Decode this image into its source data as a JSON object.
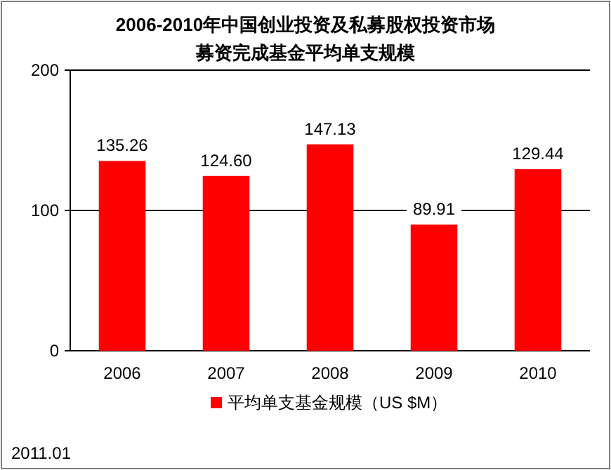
{
  "chart_data": {
    "type": "bar",
    "title": "2006-2010年中国创业投资及私募股权投资市场",
    "subtitle": "募资完成基金平均单支规模",
    "categories": [
      "2006",
      "2007",
      "2008",
      "2009",
      "2010"
    ],
    "series": [
      {
        "name": "平均单支基金规模（US $M）",
        "color": "#ff0000",
        "values": [
          135.26,
          124.6,
          147.13,
          89.91,
          129.44
        ],
        "value_labels": [
          "135.26",
          "124.60",
          "147.13",
          "89.91",
          "129.44"
        ]
      }
    ],
    "ylim": [
      0,
      200
    ],
    "yticks": [
      0,
      100,
      200
    ],
    "grid": "y",
    "legend": "bottom",
    "annotations": [
      "2011.01"
    ]
  }
}
